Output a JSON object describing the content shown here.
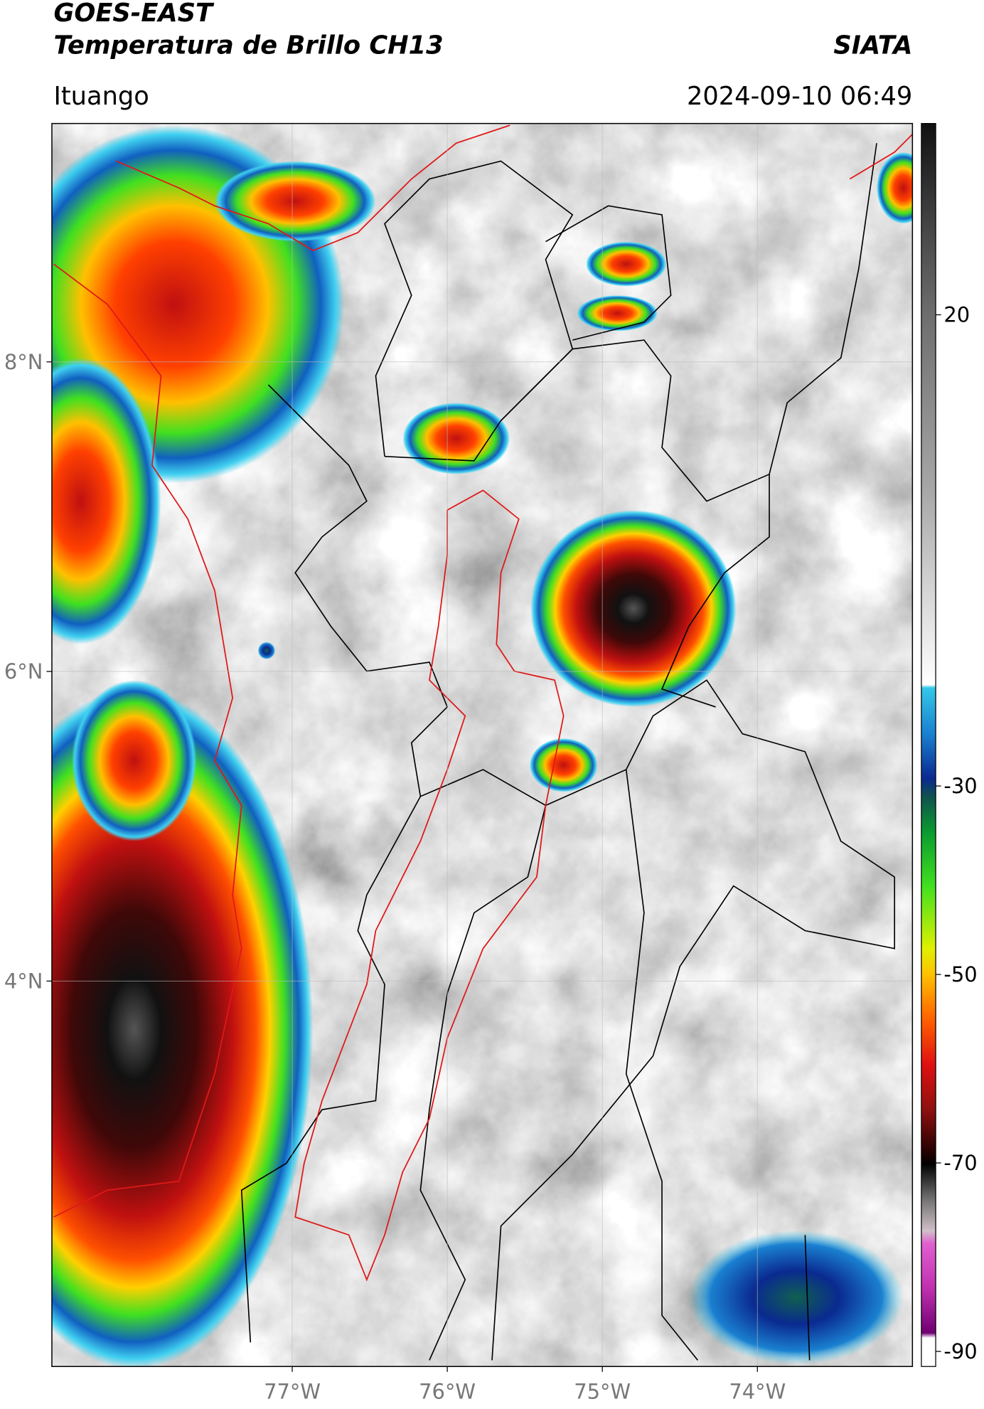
{
  "header": {
    "title": "GOES-EAST",
    "subtitle": "Temperatura de Brillo CH13",
    "source": "SIATA",
    "location": "Ituango",
    "timestamp": "2024-09-10 06:49"
  },
  "map": {
    "xlim": [
      -78.55,
      -73.0
    ],
    "ylim": [
      1.51,
      9.54
    ],
    "xticks": [
      {
        "value": -77,
        "label": "77°W"
      },
      {
        "value": -76,
        "label": "76°W"
      },
      {
        "value": -75,
        "label": "75°W"
      },
      {
        "value": -74,
        "label": "74°W"
      }
    ],
    "yticks": [
      {
        "value": 4,
        "label": "4°N"
      },
      {
        "value": 6,
        "label": "6°N"
      },
      {
        "value": 8,
        "label": "8°N"
      }
    ],
    "grid": true
  },
  "colorbar": {
    "lim": [
      -91.6,
      40.3
    ],
    "ticks": [
      20,
      -30,
      -50,
      -70,
      -90
    ]
  }
}
